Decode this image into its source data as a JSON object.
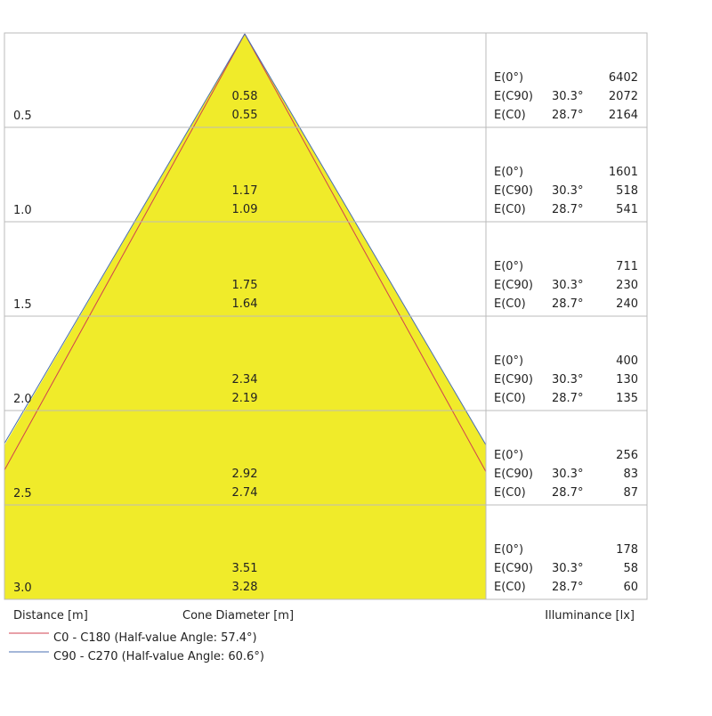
{
  "rows": [
    {
      "distance": "0.5",
      "diameter_c90": "0.58",
      "diameter_c0": "0.55",
      "e0_label": "E(0°)",
      "e0_value": "6402",
      "c90_label": "E(C90)",
      "c90_angle": "30.3°",
      "c90_value": "2072",
      "c0_label": "E(C0)",
      "c0_angle": "28.7°",
      "c0_value": "2164"
    },
    {
      "distance": "1.0",
      "diameter_c90": "1.17",
      "diameter_c0": "1.09",
      "e0_label": "E(0°)",
      "e0_value": "1601",
      "c90_label": "E(C90)",
      "c90_angle": "30.3°",
      "c90_value": "518",
      "c0_label": "E(C0)",
      "c0_angle": "28.7°",
      "c0_value": "541"
    },
    {
      "distance": "1.5",
      "diameter_c90": "1.75",
      "diameter_c0": "1.64",
      "e0_label": "E(0°)",
      "e0_value": "711",
      "c90_label": "E(C90)",
      "c90_angle": "30.3°",
      "c90_value": "230",
      "c0_label": "E(C0)",
      "c0_angle": "28.7°",
      "c0_value": "240"
    },
    {
      "distance": "2.0",
      "diameter_c90": "2.34",
      "diameter_c0": "2.19",
      "e0_label": "E(0°)",
      "e0_value": "400",
      "c90_label": "E(C90)",
      "c90_angle": "30.3°",
      "c90_value": "130",
      "c0_label": "E(C0)",
      "c0_angle": "28.7°",
      "c0_value": "135"
    },
    {
      "distance": "2.5",
      "diameter_c90": "2.92",
      "diameter_c0": "2.74",
      "e0_label": "E(0°)",
      "e0_value": "256",
      "c90_label": "E(C90)",
      "c90_angle": "30.3°",
      "c90_value": "83",
      "c0_label": "E(C0)",
      "c0_angle": "28.7°",
      "c0_value": "87"
    },
    {
      "distance": "3.0",
      "diameter_c90": "3.51",
      "diameter_c0": "3.28",
      "e0_label": "E(0°)",
      "e0_value": "178",
      "c90_label": "E(C90)",
      "c90_angle": "30.3°",
      "c90_value": "58",
      "c0_label": "E(C0)",
      "c0_angle": "28.7°",
      "c0_value": "60"
    }
  ],
  "footer": {
    "distance": "Distance [m]",
    "diameter": "Cone Diameter [m]",
    "illuminance": "Illuminance [lx]"
  },
  "legend": [
    "C0 - C180 (Half-value Angle: 57.4°)",
    "C90 - C270 (Half-value Angle: 60.6°)"
  ]
}
